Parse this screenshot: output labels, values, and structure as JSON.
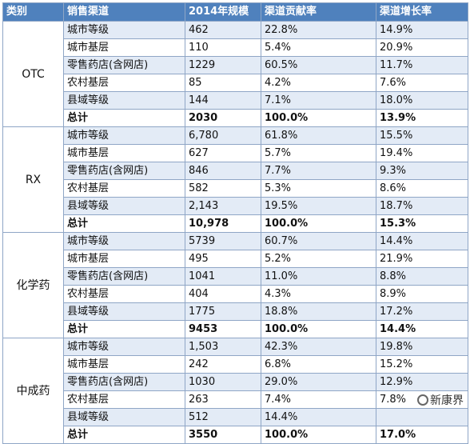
{
  "headers": [
    "类别",
    "销售渠道",
    "2014年规模",
    "渠道贡献率",
    "渠道增长率"
  ],
  "groups": [
    {
      "category": "OTC",
      "rows": [
        [
          "城市等级",
          "462",
          "22.8%",
          "14.9%"
        ],
        [
          "城市基层",
          "110",
          "5.4%",
          "20.9%"
        ],
        [
          "零售药店(含网店)",
          "1229",
          "60.5%",
          "11.7%"
        ],
        [
          "农村基层",
          "85",
          "4.2%",
          "7.6%"
        ],
        [
          "县域等级",
          "144",
          "7.1%",
          "18.0%"
        ],
        [
          "总计",
          "2030",
          "100.0%",
          "13.9%"
        ]
      ]
    },
    {
      "category": "RX",
      "rows": [
        [
          "城市等级",
          "6,780",
          "61.8%",
          "15.5%"
        ],
        [
          "城市基层",
          "627",
          "5.7%",
          "19.4%"
        ],
        [
          "零售药店(含网店)",
          "846",
          "7.7%",
          "9.3%"
        ],
        [
          "农村基层",
          "582",
          "5.3%",
          "8.6%"
        ],
        [
          "县域等级",
          "2,143",
          "19.5%",
          "18.7%"
        ],
        [
          "总计",
          "10,978",
          "100.0%",
          "15.3%"
        ]
      ]
    },
    {
      "category": "化学药",
      "rows": [
        [
          "城市等级",
          "5739",
          "60.7%",
          "14.4%"
        ],
        [
          "城市基层",
          "495",
          "5.2%",
          "21.9%"
        ],
        [
          "零售药店(含网店)",
          "1041",
          "11.0%",
          "8.8%"
        ],
        [
          "农村基层",
          "404",
          "4.3%",
          "8.9%"
        ],
        [
          "县域等级",
          "1775",
          "18.8%",
          "17.2%"
        ],
        [
          "总计",
          "9453",
          "100.0%",
          "14.4%"
        ]
      ]
    },
    {
      "category": "中成药",
      "rows": [
        [
          "城市等级",
          "1,503",
          "42.3%",
          "19.8%"
        ],
        [
          "城市基层",
          "242",
          "6.8%",
          "15.2%"
        ],
        [
          "零售药店(含网店)",
          "1030",
          "29.0%",
          "12.9%"
        ],
        [
          "农村基层",
          "263",
          "7.4%",
          "7.8%"
        ],
        [
          "县域等级",
          "512",
          "14.4%",
          ""
        ],
        [
          "总计",
          "3550",
          "100.0%",
          "17.0%"
        ]
      ]
    }
  ],
  "watermark_logo": "新康界"
}
